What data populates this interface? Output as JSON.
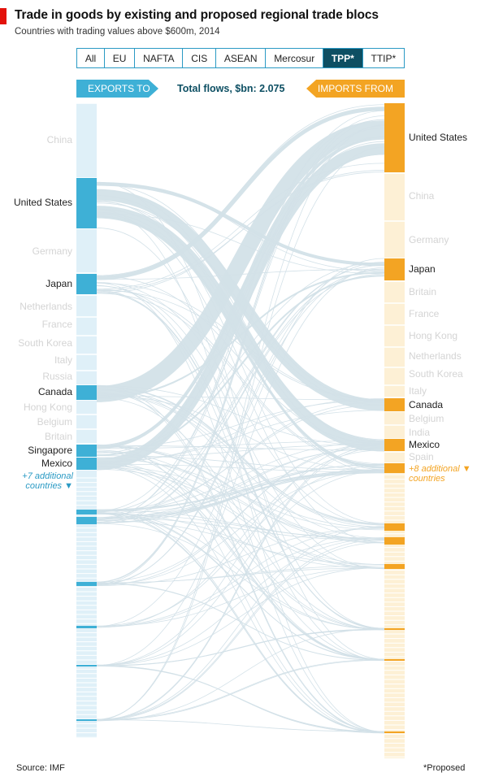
{
  "header": {
    "title": "Trade in goods by existing and proposed regional trade blocs",
    "subtitle": "Countries with trading values above $600m, 2014"
  },
  "tabs": [
    {
      "label": "All",
      "active": false
    },
    {
      "label": "EU",
      "active": false
    },
    {
      "label": "NAFTA",
      "active": false
    },
    {
      "label": "CIS",
      "active": false
    },
    {
      "label": "ASEAN",
      "active": false
    },
    {
      "label": "Mercosur",
      "active": false
    },
    {
      "label": "TPP*",
      "active": true
    },
    {
      "label": "TTIP*",
      "active": false
    }
  ],
  "legend": {
    "exports_label": "EXPORTS TO",
    "imports_label": "IMPORTS FROM",
    "total_label": "Total flows, $bn: 2.075"
  },
  "left_more": "+7 additional countries ▼",
  "right_more": "+8 additional ▼ countries",
  "footer": {
    "source": "Source: IMF",
    "note": "*Proposed"
  },
  "colors": {
    "exports_accent": "#3eb0d6",
    "exports_bg": "#dff0f8",
    "imports_accent": "#f3a423",
    "imports_bg": "#fdf0d5",
    "flow": "#d3e1e8",
    "active_tab": "#0d4f63"
  },
  "chart_data": {
    "type": "sankey",
    "total_flows_bn": 2.075,
    "exports_to": [
      {
        "country": "China",
        "in_bloc": false
      },
      {
        "country": "United States",
        "in_bloc": true
      },
      {
        "country": "Germany",
        "in_bloc": false
      },
      {
        "country": "Japan",
        "in_bloc": true
      },
      {
        "country": "Netherlands",
        "in_bloc": false
      },
      {
        "country": "France",
        "in_bloc": false
      },
      {
        "country": "South Korea",
        "in_bloc": false
      },
      {
        "country": "Italy",
        "in_bloc": false
      },
      {
        "country": "Russia",
        "in_bloc": false
      },
      {
        "country": "Canada",
        "in_bloc": true
      },
      {
        "country": "Hong Kong",
        "in_bloc": false
      },
      {
        "country": "Belgium",
        "in_bloc": false
      },
      {
        "country": "Britain",
        "in_bloc": false
      },
      {
        "country": "Singapore",
        "in_bloc": true
      },
      {
        "country": "Mexico",
        "in_bloc": true
      }
    ],
    "imports_from": [
      {
        "country": "United States",
        "in_bloc": true
      },
      {
        "country": "China",
        "in_bloc": false
      },
      {
        "country": "Germany",
        "in_bloc": false
      },
      {
        "country": "Japan",
        "in_bloc": true
      },
      {
        "country": "Britain",
        "in_bloc": false
      },
      {
        "country": "France",
        "in_bloc": false
      },
      {
        "country": "Hong Kong",
        "in_bloc": false
      },
      {
        "country": "Netherlands",
        "in_bloc": false
      },
      {
        "country": "South Korea",
        "in_bloc": false
      },
      {
        "country": "Italy",
        "in_bloc": false
      },
      {
        "country": "Canada",
        "in_bloc": true
      },
      {
        "country": "Belgium",
        "in_bloc": false
      },
      {
        "country": "India",
        "in_bloc": false
      },
      {
        "country": "Mexico",
        "in_bloc": true
      },
      {
        "country": "Spain",
        "in_bloc": false
      }
    ]
  }
}
